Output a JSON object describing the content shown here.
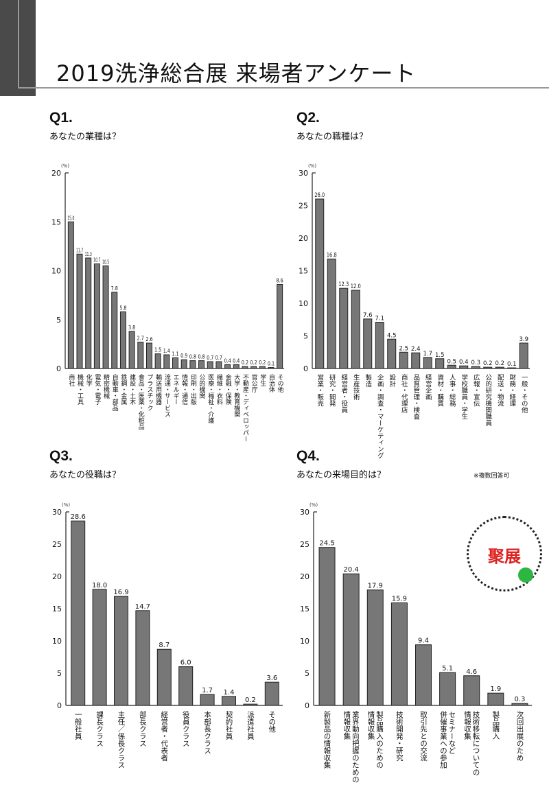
{
  "title": "2019洗浄総合展 来場者アンケート",
  "note_q4": "※複数回答可",
  "watermark": "聚展",
  "colors": {
    "bar": "#777777",
    "bar_stroke": "#222222",
    "text": "#111111",
    "band": "#4a4a4a",
    "watermark": "#e02020"
  },
  "chart_data": [
    {
      "type": "bar",
      "id": "q1",
      "heading": "Q1.",
      "title": "あなたの業種は？",
      "ylabel": "(%)",
      "ylim": [
        0,
        20
      ],
      "yticks": [
        0,
        5,
        10,
        15,
        20
      ],
      "categories": [
        "商社",
        "機械・工具",
        "化学",
        "電気・電子",
        "精密機械",
        "自動車・部品",
        "鉄鋼・金属",
        "建設・土木",
        "食品・医薬・化粧品",
        "プラスチック",
        "輸送用機器",
        "流通・サービス",
        "エネルギー",
        "情報・通信",
        "印刷・出版",
        "公的機関",
        "医療・福祉・介護",
        "繊維・衣料",
        "金融・保険",
        "大学・教育機関",
        "不動産・ディベロッパー",
        "官公庁",
        "学生",
        "自治体",
        "その他"
      ],
      "values": [
        15.0,
        11.7,
        11.3,
        10.7,
        10.5,
        7.8,
        5.8,
        3.8,
        2.7,
        2.6,
        1.5,
        1.4,
        1.1,
        0.9,
        0.8,
        0.8,
        0.7,
        0.7,
        0.4,
        0.4,
        0.2,
        0.2,
        0.2,
        0.1,
        8.6
      ]
    },
    {
      "type": "bar",
      "id": "q2",
      "heading": "Q2.",
      "title": "あなたの職種は？",
      "ylabel": "(%)",
      "ylim": [
        0,
        30
      ],
      "yticks": [
        0,
        5,
        10,
        15,
        20,
        25,
        30
      ],
      "categories": [
        "営業・販売",
        "研究・開発",
        "経営者・役員",
        "生産技術",
        "製造",
        "企画・調査・マーケティング",
        "設計",
        "商社・代理店",
        "品質管理・検査",
        "経営企画",
        "資材・購買",
        "人事・総務",
        "学校職員・学生",
        "広報・宣伝",
        "公的研究機関職員",
        "配送・物流",
        "財務・経理",
        "一般・その他"
      ],
      "values": [
        26.0,
        16.8,
        12.3,
        12.0,
        7.6,
        7.1,
        4.5,
        2.5,
        2.4,
        1.7,
        1.5,
        0.5,
        0.4,
        0.3,
        0.2,
        0.2,
        0.1,
        3.9
      ]
    },
    {
      "type": "bar",
      "id": "q3",
      "heading": "Q3.",
      "title": "あなたの役職は？",
      "ylabel": "(%)",
      "ylim": [
        0,
        30
      ],
      "yticks": [
        0,
        5,
        10,
        15,
        20,
        25,
        30
      ],
      "categories": [
        "一般社員",
        "課長クラス",
        "主任／係長クラス",
        "部長クラス",
        "経営者・代表者",
        "役員クラス",
        "本部長クラス",
        "契約社員",
        "派遣社員",
        "その他"
      ],
      "values": [
        28.6,
        18.0,
        16.9,
        14.7,
        8.7,
        6.0,
        1.7,
        1.4,
        0.2,
        3.6
      ]
    },
    {
      "type": "bar",
      "id": "q4",
      "heading": "Q4.",
      "title": "あなたの来場目的は？",
      "ylabel": "(%)",
      "ylim": [
        0,
        30
      ],
      "yticks": [
        0,
        5,
        10,
        15,
        20,
        25,
        30
      ],
      "categories": [
        "新製品の情報収集",
        "業界動向把握のための\n情報収集",
        "製品購入のための\n情報収集",
        "技術開発・研究",
        "取引先との交流",
        "セミナーなど\n併催事業への参加",
        "技術移転についての\n情報収集",
        "製品購入",
        "次回出展のため"
      ],
      "values": [
        24.5,
        20.4,
        17.9,
        15.9,
        9.4,
        5.1,
        4.6,
        1.9,
        0.3
      ]
    }
  ]
}
